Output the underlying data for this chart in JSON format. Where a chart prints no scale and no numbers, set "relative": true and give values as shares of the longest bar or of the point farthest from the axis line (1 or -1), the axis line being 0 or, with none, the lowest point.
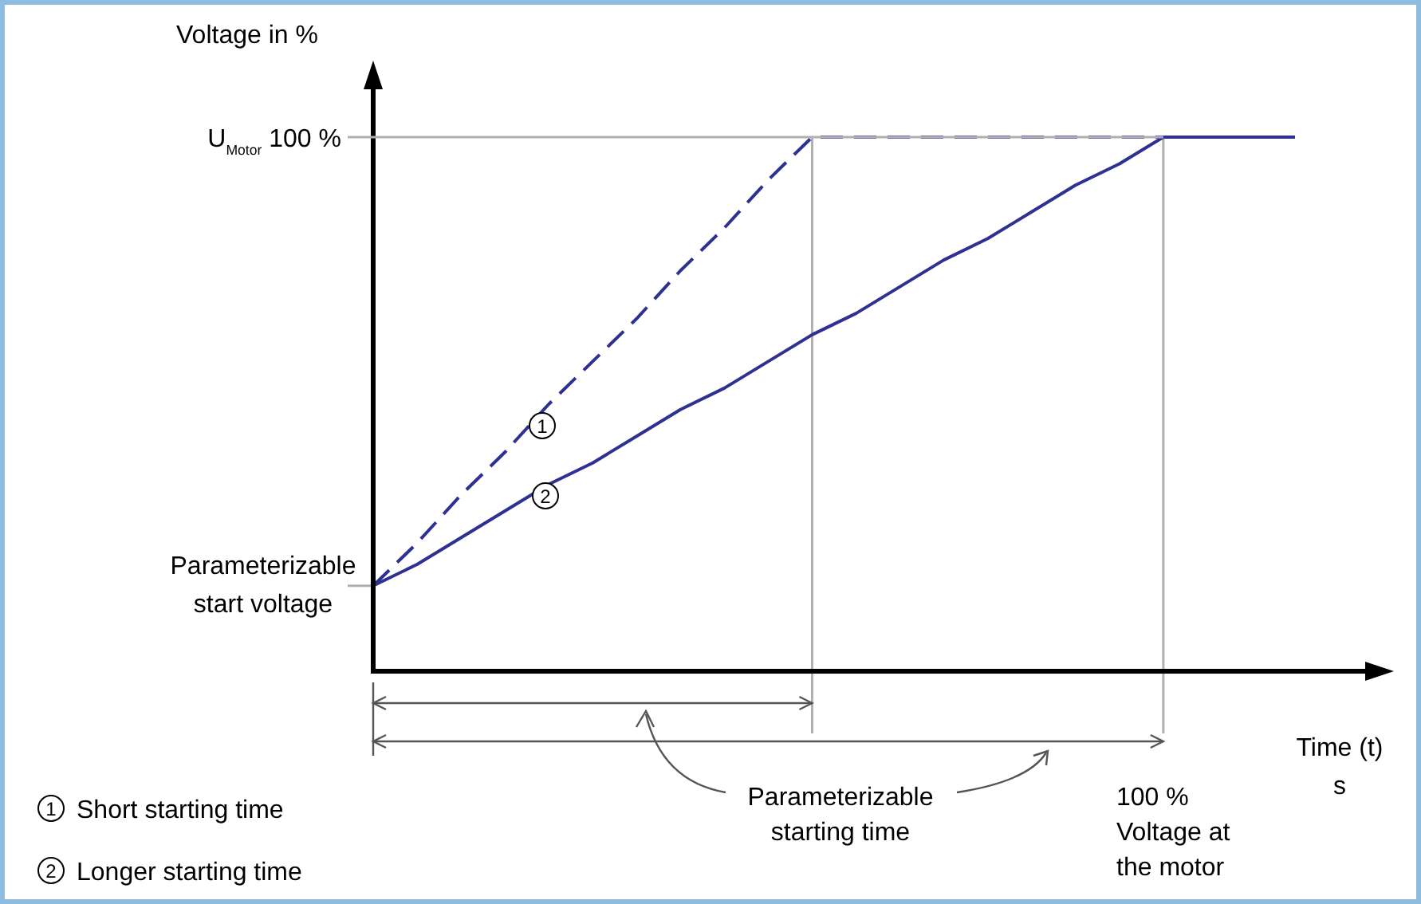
{
  "chart_data": {
    "type": "line",
    "relative": true,
    "ylabel": "Voltage in %",
    "xlabel": "Time (t)\ns",
    "categories": [
      null,
      null,
      null,
      null,
      null,
      null,
      null,
      null,
      null,
      null,
      null,
      null,
      null,
      null,
      null,
      null,
      null,
      null,
      null,
      null,
      null,
      null
    ],
    "series": [
      {
        "color": "#2e3192",
        "line_style": "dashed",
        "values": [
          0.16,
          0.24,
          0.33,
          0.41,
          0.5,
          0.58,
          0.66,
          0.75,
          0.83,
          0.92,
          1,
          1,
          1,
          1,
          1,
          1,
          1,
          1,
          1,
          null,
          null,
          null
        ]
      },
      {
        "color": "#2e3192",
        "line_style": "solid",
        "values": [
          0.16,
          0.2,
          0.25,
          0.3,
          0.35,
          0.39,
          0.44,
          0.49,
          0.53,
          0.58,
          0.63,
          0.67,
          0.72,
          0.77,
          0.81,
          0.86,
          0.91,
          0.95,
          1,
          1,
          1,
          1
        ]
      }
    ],
    "annotations": [
      "U$_{Motor}$ 100 %",
      "1",
      "2",
      "Parameterizable\nstart voltage",
      "Parameterizable\nstarting time",
      "100 %\nVoltage at\nthe motor",
      "1",
      "Short starting time",
      "2",
      "Longer starting time"
    ]
  }
}
